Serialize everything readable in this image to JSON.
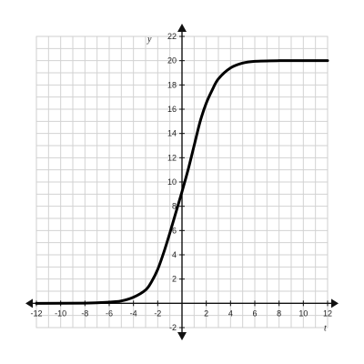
{
  "chart_data": {
    "type": "line",
    "title": "",
    "xlabel": "t",
    "ylabel": "y",
    "xlim": [
      -12,
      12
    ],
    "ylim": [
      -2,
      22
    ],
    "grid": true,
    "x_ticks": [
      -12,
      -10,
      -8,
      -6,
      -4,
      -2,
      2,
      4,
      6,
      8,
      10,
      12
    ],
    "y_ticks": [
      -2,
      2,
      4,
      6,
      8,
      10,
      12,
      14,
      16,
      18,
      20,
      22
    ],
    "series": [
      {
        "color": "#000000",
        "x": [
          -12,
          -8,
          -6,
          -5,
          -4,
          -3,
          -2.5,
          -2,
          -1.5,
          -1,
          -0.5,
          0,
          0.5,
          1,
          1.5,
          2,
          2.5,
          3,
          4,
          5,
          6,
          8,
          10,
          12
        ],
        "y": [
          0,
          0.02,
          0.1,
          0.2,
          0.5,
          1.1,
          1.8,
          2.8,
          4.2,
          5.8,
          7.5,
          9.2,
          11.0,
          13.0,
          15.0,
          16.5,
          17.6,
          18.5,
          19.4,
          19.8,
          19.95,
          20,
          20,
          20
        ]
      }
    ]
  }
}
